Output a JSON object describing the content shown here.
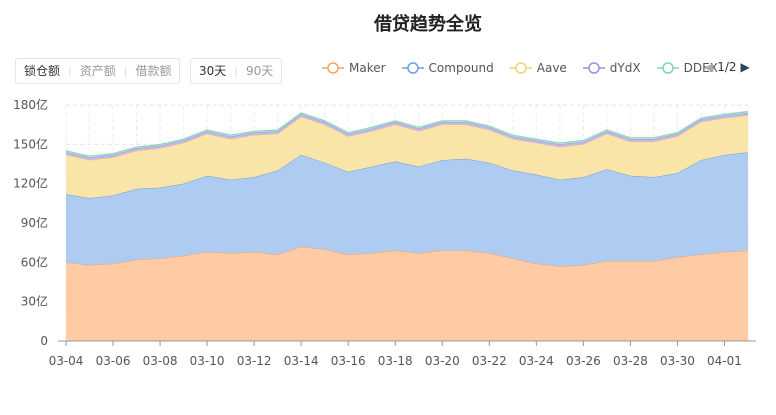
{
  "title": "借贷趋势全览",
  "metric_tabs": [
    "锁仓额",
    "资产额",
    "借款额"
  ],
  "range_tabs": [
    "30天",
    "90天"
  ],
  "legend": {
    "items": [
      {
        "name": "Maker",
        "color": "#f4a46a",
        "fill": "#ffcba4"
      },
      {
        "name": "Compound",
        "color": "#6f9fe0",
        "fill": "#aecbf2"
      },
      {
        "name": "Aave",
        "color": "#f2d271",
        "fill": "#f9e5a8"
      },
      {
        "name": "dYdX",
        "color": "#a58be0",
        "fill": "#c7b5ef"
      },
      {
        "name": "DDEX",
        "color": "#7fd6b3",
        "fill": "#b8ead6"
      }
    ],
    "page": "1/2",
    "prev_icon": "chevron-left-icon",
    "next_icon": "chevron-right-icon"
  },
  "chart_data": {
    "type": "area",
    "stacked": true,
    "x": [
      "03-04",
      "03-05",
      "03-06",
      "03-07",
      "03-08",
      "03-09",
      "03-10",
      "03-11",
      "03-12",
      "03-13",
      "03-14",
      "03-15",
      "03-16",
      "03-17",
      "03-18",
      "03-19",
      "03-20",
      "03-21",
      "03-22",
      "03-23",
      "03-24",
      "03-25",
      "03-26",
      "03-27",
      "03-28",
      "03-29",
      "03-30",
      "03-31",
      "04-01",
      "04-02"
    ],
    "xticks": [
      "03-04",
      "03-06",
      "03-08",
      "03-10",
      "03-12",
      "03-14",
      "03-16",
      "03-18",
      "03-20",
      "03-22",
      "03-24",
      "03-26",
      "03-28",
      "03-30",
      "04-01"
    ],
    "yticks": [
      "0",
      "30亿",
      "60亿",
      "90亿",
      "120亿",
      "150亿",
      "180亿"
    ],
    "ylim": [
      0,
      180
    ],
    "grid": true,
    "series": [
      {
        "name": "Maker",
        "values": [
          60,
          58,
          59,
          62,
          63,
          65,
          68,
          67,
          68,
          66,
          72,
          70,
          66,
          67,
          69,
          67,
          69,
          69,
          67,
          63,
          59,
          57,
          58,
          61,
          61,
          61,
          64,
          66,
          68,
          69
        ]
      },
      {
        "name": "Compound",
        "values": [
          52,
          51,
          52,
          54,
          54,
          55,
          58,
          56,
          57,
          64,
          70,
          66,
          63,
          66,
          68,
          66,
          69,
          70,
          69,
          67,
          68,
          66,
          67,
          70,
          65,
          64,
          64,
          72,
          74,
          75
        ]
      },
      {
        "name": "Aave",
        "values": [
          30,
          29,
          29,
          29,
          30,
          31,
          32,
          31,
          32,
          28,
          29,
          29,
          27,
          27,
          28,
          27,
          27,
          26,
          25,
          24,
          24,
          25,
          25,
          27,
          26,
          27,
          28,
          29,
          28,
          28
        ]
      },
      {
        "name": "dYdX",
        "values": [
          2,
          2,
          2,
          2,
          2,
          2,
          2,
          2,
          2,
          2,
          2,
          2,
          2,
          2,
          2,
          2,
          2,
          2,
          2,
          2,
          2,
          2,
          2,
          2,
          2,
          2,
          2,
          2,
          2,
          2
        ]
      },
      {
        "name": "DDEX",
        "values": [
          1,
          1,
          1,
          1,
          1,
          1,
          1,
          1,
          1,
          1,
          1,
          1,
          1,
          1,
          1,
          1,
          1,
          1,
          1,
          1,
          1,
          1,
          1,
          1,
          1,
          1,
          1,
          1,
          1,
          1
        ]
      }
    ]
  }
}
